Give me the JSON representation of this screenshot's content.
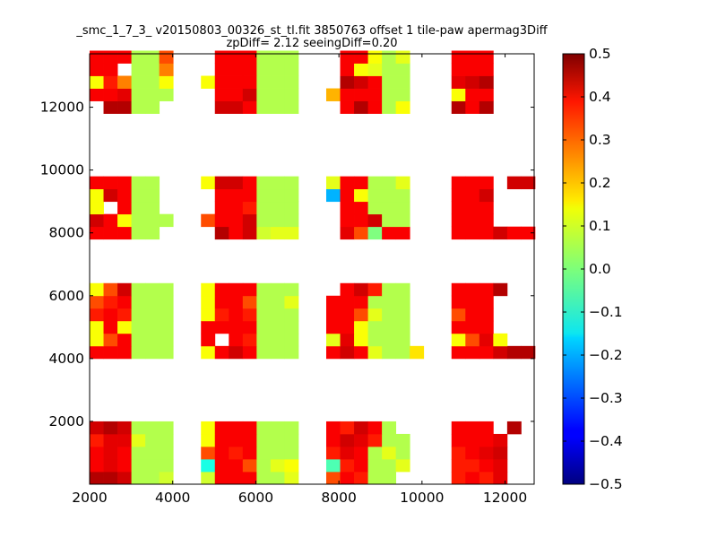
{
  "chart_data": {
    "type": "heatmap",
    "title": "_smc_1_7_3_ v20150803_00326_st_tl.fit 3850763 offset 1 tile-paw apermag3Diff",
    "subtitle": "zpDiff= 2.12 seeingDiff=0.20",
    "xlabel": "",
    "ylabel": "",
    "xlim": [
      2000,
      12700
    ],
    "ylim": [
      0,
      13700
    ],
    "x_ticks": [
      "2000",
      "4000",
      "6000",
      "8000",
      "10000",
      "12000"
    ],
    "y_ticks": [
      "2000",
      "4000",
      "6000",
      "8000",
      "10000",
      "12000"
    ],
    "colorbar": {
      "colormap": "jet",
      "range": [
        -0.5,
        0.5
      ],
      "ticks": [
        "0.5",
        "0.4",
        "0.3",
        "0.2",
        "0.1",
        "0.0",
        "−0.1",
        "−0.2",
        "−0.3",
        "−0.4",
        "−0.5"
      ]
    },
    "grid": false,
    "cell_size": [
      335,
      400
    ],
    "columns_x": [
      2000,
      2335,
      2670,
      3005,
      3340,
      3675,
      4010,
      4680,
      5015,
      5350,
      5685,
      6020,
      6355,
      6690,
      7695,
      8030,
      8365,
      8700,
      9035,
      9370,
      9705,
      10710,
      11045,
      11380,
      11715,
      12050,
      12385
    ],
    "row_bands": [
      {
        "y": [
          0,
          400,
          800,
          1200,
          1600,
          2000
        ]
      },
      {
        "y": [
          4000,
          4400,
          4800,
          5200,
          5600,
          6000
        ]
      },
      {
        "y": [
          7800,
          8200,
          8600,
          9000,
          9400,
          9800
        ]
      },
      {
        "y": [
          11800,
          12200,
          12600,
          13000,
          13400
        ]
      }
    ],
    "values": [
      [
        [
          0.45,
          0.45,
          0.42,
          0.05,
          0.05,
          0.08,
          null,
          0.08,
          0.38,
          0.38,
          0.38,
          0.05,
          0.05,
          0.1,
          0.3,
          0.38,
          0.35,
          0.05,
          0.05,
          null,
          null,
          0.35,
          0.38,
          0.35,
          0.4,
          null,
          null
        ],
        [
          0.38,
          0.4,
          0.38,
          0.05,
          0.05,
          0.05,
          null,
          -0.1,
          0.38,
          0.38,
          0.3,
          0.05,
          0.1,
          0.12,
          -0.05,
          0.35,
          0.38,
          0.05,
          0.05,
          0.1,
          null,
          0.35,
          0.35,
          0.38,
          0.4,
          null,
          null
        ],
        [
          0.38,
          0.4,
          0.38,
          0.05,
          0.05,
          0.05,
          null,
          0.3,
          0.38,
          0.35,
          0.38,
          0.05,
          0.05,
          0.05,
          0.35,
          0.4,
          0.38,
          0.05,
          0.1,
          0.05,
          null,
          0.35,
          0.38,
          0.4,
          0.42,
          null,
          null
        ],
        [
          0.35,
          0.4,
          0.4,
          0.1,
          0.05,
          0.05,
          null,
          0.12,
          0.38,
          0.38,
          0.38,
          0.05,
          0.05,
          0.05,
          0.38,
          0.42,
          0.4,
          0.35,
          0.05,
          0.05,
          null,
          0.38,
          0.38,
          0.38,
          0.4,
          null,
          null
        ],
        [
          0.42,
          0.45,
          0.42,
          0.05,
          0.05,
          0.05,
          null,
          0.12,
          0.38,
          0.38,
          0.38,
          0.05,
          0.05,
          0.05,
          0.38,
          0.35,
          0.42,
          0.38,
          0.05,
          null,
          null,
          0.38,
          0.38,
          0.38,
          null,
          0.45,
          null
        ]
      ],
      [
        [
          0.38,
          0.38,
          0.38,
          0.05,
          0.05,
          0.05,
          null,
          0.12,
          0.38,
          0.42,
          0.38,
          0.05,
          0.05,
          0.05,
          0.38,
          0.42,
          0.38,
          0.1,
          0.05,
          0.05,
          0.15,
          0.38,
          0.38,
          0.38,
          0.42,
          0.45,
          0.45
        ],
        [
          0.12,
          0.3,
          0.38,
          0.05,
          0.05,
          0.05,
          null,
          0.38,
          null,
          0.38,
          0.35,
          0.05,
          0.05,
          0.05,
          0.1,
          0.4,
          0.12,
          0.05,
          0.05,
          0.05,
          null,
          0.12,
          0.3,
          0.4,
          0.12,
          null,
          null
        ],
        [
          0.12,
          0.38,
          0.12,
          0.05,
          0.05,
          0.05,
          null,
          0.38,
          0.38,
          0.38,
          0.38,
          0.05,
          0.05,
          0.05,
          0.38,
          0.38,
          0.12,
          0.05,
          0.05,
          0.05,
          null,
          0.38,
          0.38,
          0.38,
          null,
          null,
          null
        ],
        [
          0.35,
          0.38,
          0.35,
          0.05,
          0.05,
          0.05,
          null,
          0.12,
          0.35,
          0.38,
          0.35,
          0.05,
          0.05,
          0.05,
          0.38,
          0.38,
          0.3,
          0.1,
          0.05,
          0.05,
          null,
          0.3,
          0.38,
          0.38,
          null,
          null,
          null
        ],
        [
          0.3,
          0.35,
          0.38,
          0.05,
          0.05,
          0.05,
          null,
          0.12,
          0.38,
          0.38,
          0.3,
          0.05,
          0.05,
          0.1,
          0.38,
          0.38,
          0.38,
          0.05,
          0.05,
          0.05,
          null,
          0.38,
          0.38,
          0.38,
          null,
          null,
          null
        ],
        [
          0.12,
          0.3,
          0.42,
          0.05,
          0.05,
          0.05,
          null,
          0.12,
          0.38,
          0.38,
          0.38,
          0.05,
          0.05,
          0.05,
          null,
          0.38,
          0.42,
          0.35,
          0.05,
          0.05,
          null,
          0.38,
          0.38,
          0.38,
          0.45,
          null,
          null
        ]
      ],
      [
        [
          0.38,
          0.38,
          0.38,
          0.05,
          0.05,
          null,
          null,
          null,
          0.45,
          0.38,
          0.42,
          0.08,
          0.1,
          0.1,
          null,
          0.4,
          0.3,
          0.0,
          0.38,
          0.38,
          null,
          0.38,
          0.38,
          0.38,
          0.42,
          0.38,
          0.38
        ],
        [
          0.42,
          0.38,
          0.12,
          0.05,
          0.05,
          0.05,
          null,
          0.3,
          0.38,
          0.38,
          0.42,
          0.05,
          0.05,
          0.05,
          null,
          0.38,
          0.38,
          0.42,
          0.05,
          0.05,
          null,
          0.38,
          0.38,
          0.38,
          null,
          null,
          null
        ],
        [
          0.12,
          null,
          0.38,
          0.05,
          0.05,
          null,
          null,
          null,
          0.38,
          0.38,
          0.35,
          0.05,
          0.05,
          0.05,
          null,
          0.38,
          0.38,
          0.05,
          0.05,
          0.05,
          null,
          0.38,
          0.38,
          0.38,
          null,
          null,
          null
        ],
        [
          0.12,
          0.42,
          0.38,
          0.05,
          0.05,
          null,
          null,
          null,
          0.38,
          0.38,
          0.38,
          0.05,
          0.05,
          0.05,
          -0.2,
          0.38,
          0.12,
          0.05,
          0.05,
          0.05,
          null,
          0.38,
          0.38,
          0.42,
          null,
          null,
          null
        ],
        [
          0.38,
          0.38,
          0.38,
          0.05,
          0.05,
          null,
          null,
          0.12,
          0.42,
          0.42,
          0.38,
          0.05,
          0.05,
          0.05,
          0.1,
          0.38,
          0.38,
          0.05,
          0.05,
          0.1,
          null,
          0.38,
          0.38,
          0.38,
          null,
          0.42,
          0.42
        ]
      ],
      [
        [
          null,
          0.45,
          0.45,
          0.05,
          0.05,
          null,
          null,
          null,
          0.42,
          0.42,
          0.38,
          0.05,
          0.05,
          0.05,
          null,
          0.38,
          0.45,
          0.38,
          0.05,
          0.12,
          null,
          0.45,
          0.38,
          0.45,
          null,
          null,
          null
        ],
        [
          0.38,
          0.38,
          0.4,
          0.05,
          0.05,
          0.05,
          null,
          null,
          0.38,
          0.38,
          0.42,
          0.05,
          0.05,
          0.05,
          0.2,
          0.38,
          0.38,
          0.38,
          0.05,
          0.05,
          null,
          0.12,
          0.38,
          0.38,
          null,
          null,
          null
        ],
        [
          0.12,
          0.35,
          0.25,
          0.05,
          0.05,
          0.12,
          null,
          0.12,
          0.38,
          0.38,
          0.38,
          0.05,
          0.05,
          0.05,
          null,
          0.45,
          0.42,
          0.38,
          0.05,
          0.05,
          null,
          0.4,
          0.42,
          0.45,
          null,
          null,
          null
        ],
        [
          0.38,
          0.38,
          null,
          0.05,
          0.05,
          0.25,
          null,
          null,
          0.38,
          0.38,
          0.38,
          0.05,
          0.05,
          0.05,
          null,
          0.38,
          0.12,
          0.1,
          0.05,
          0.05,
          null,
          0.38,
          0.38,
          0.38,
          null,
          null,
          null
        ],
        [
          0.38,
          0.38,
          0.38,
          0.05,
          0.05,
          0.3,
          null,
          null,
          0.38,
          0.38,
          0.38,
          0.05,
          0.05,
          0.05,
          null,
          0.38,
          0.38,
          0.12,
          0.05,
          0.1,
          null,
          0.38,
          0.38,
          0.38,
          null,
          null,
          null
        ]
      ]
    ]
  }
}
